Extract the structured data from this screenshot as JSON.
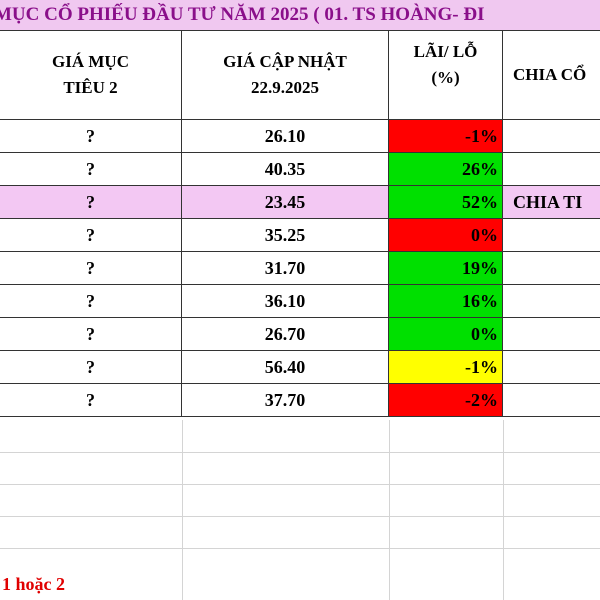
{
  "sheet": {
    "title": "MỤC CỔ PHIẾU ĐẦU TƯ NĂM 2025 ( 01. TS HOÀNG- ĐI",
    "headers": {
      "target_price_2": [
        "GIÁ MỤC",
        "TIÊU 2"
      ],
      "updated_price": [
        "GIÁ CẬP NHẬT",
        "22.9.2025"
      ],
      "profit_loss": [
        "LÃI/ LỖ",
        "(%)"
      ],
      "dividend": "CHIA CỔ"
    },
    "rows": [
      {
        "target": "?",
        "price": "26.10",
        "pl": "-1%",
        "pl_color": "#ff0000",
        "dividend": "",
        "highlight": false
      },
      {
        "target": "?",
        "price": "40.35",
        "pl": "26%",
        "pl_color": "#00e000",
        "dividend": "",
        "highlight": false
      },
      {
        "target": "?",
        "price": "23.45",
        "pl": "52%",
        "pl_color": "#00e000",
        "dividend": "CHIA TI",
        "highlight": true
      },
      {
        "target": "?",
        "price": "35.25",
        "pl": "0%",
        "pl_color": "#ff0000",
        "dividend": "",
        "highlight": false
      },
      {
        "target": "?",
        "price": "31.70",
        "pl": "19%",
        "pl_color": "#00e000",
        "dividend": "",
        "highlight": false
      },
      {
        "target": "?",
        "price": "36.10",
        "pl": "16%",
        "pl_color": "#00e000",
        "dividend": "",
        "highlight": false
      },
      {
        "target": "?",
        "price": "26.70",
        "pl": "0%",
        "pl_color": "#00e000",
        "dividend": "",
        "highlight": false
      },
      {
        "target": "?",
        "price": "56.40",
        "pl": "-1%",
        "pl_color": "#ffff00",
        "dividend": "",
        "highlight": false
      },
      {
        "target": "?",
        "price": "37.70",
        "pl": "-2%",
        "pl_color": "#ff0000",
        "dividend": "",
        "highlight": false
      }
    ],
    "footnote": "1 hoặc 2"
  }
}
